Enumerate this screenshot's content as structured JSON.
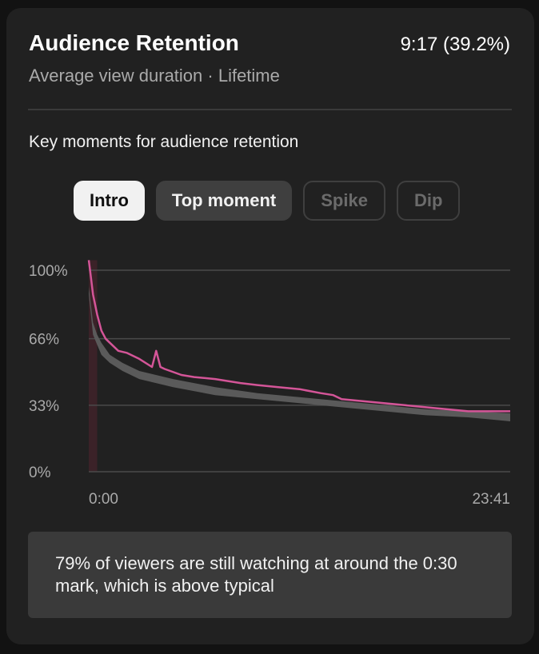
{
  "card": {
    "title": "Audience Retention",
    "metric": "9:17 (39.2%)",
    "subtitle": "Average view duration · Lifetime"
  },
  "key_moments": {
    "heading": "Key moments for audience retention",
    "chips": [
      {
        "label": "Intro",
        "state": "selected"
      },
      {
        "label": "Top moment",
        "state": "normal"
      },
      {
        "label": "Spike",
        "state": "disabled"
      },
      {
        "label": "Dip",
        "state": "disabled"
      }
    ]
  },
  "colors": {
    "this_video": "#d45598",
    "typical_band": "#5a5a5a",
    "intro_highlight": "#3b2228",
    "gridline": "#4a4a4a"
  },
  "chart_data": {
    "type": "line",
    "yticks": [
      "100%",
      "66%",
      "33%",
      "0%"
    ],
    "ylim": [
      0,
      100
    ],
    "xticks": [
      "0:00",
      "23:41"
    ],
    "x_range": [
      "0:00",
      "23:41"
    ],
    "grid": true,
    "highlight": {
      "label": "Intro",
      "x_start_pct": 0,
      "x_end_pct": 2
    },
    "series": [
      {
        "role": "this-video",
        "color": "#d45598",
        "x": [
          0,
          0.3,
          1,
          2,
          3,
          4,
          5,
          7,
          9,
          12,
          15,
          16,
          17,
          18,
          22,
          25,
          30,
          36,
          40,
          45,
          50,
          55,
          58,
          60,
          65,
          70,
          75,
          80,
          85,
          90,
          95,
          100
        ],
        "y": [
          105,
          100,
          88,
          78,
          70,
          66,
          64,
          60,
          59,
          56,
          52,
          60,
          52,
          51,
          48,
          47,
          46,
          44,
          43,
          42,
          41,
          39,
          38,
          36,
          35,
          34,
          33,
          32,
          31,
          30,
          30,
          30
        ]
      },
      {
        "role": "typical-upper",
        "x": [
          0,
          1,
          2,
          3,
          5,
          8,
          12,
          20,
          30,
          40,
          50,
          60,
          70,
          80,
          90,
          100
        ],
        "y": [
          92,
          74,
          68,
          64,
          58,
          54,
          50,
          46,
          42,
          39,
          37,
          35,
          33,
          31,
          30,
          29
        ]
      },
      {
        "role": "typical-lower",
        "x": [
          0,
          1,
          2,
          3,
          5,
          8,
          12,
          20,
          30,
          40,
          50,
          60,
          70,
          80,
          90,
          100
        ],
        "y": [
          88,
          68,
          63,
          58,
          54,
          50,
          46,
          42,
          38,
          36,
          34,
          32,
          30,
          28,
          27,
          25
        ]
      }
    ]
  },
  "insight": {
    "text": "79% of viewers are still watching at around the 0:30 mark, which is above typical"
  }
}
